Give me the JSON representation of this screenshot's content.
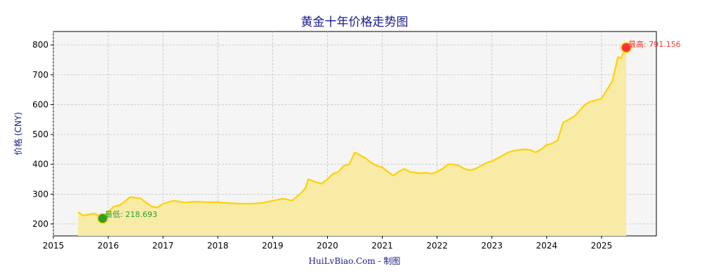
{
  "chart_data": {
    "type": "area",
    "title": "黄金十年价格走势图",
    "xlabel": "",
    "ylabel": "价格 (CNY)",
    "credit": "HuiLvBiao.Com - 制图",
    "xlim": [
      2015.0,
      2026.0
    ],
    "ylim": [
      160,
      845
    ],
    "x_ticks": [
      2015,
      2016,
      2017,
      2018,
      2019,
      2020,
      2021,
      2022,
      2023,
      2024,
      2025
    ],
    "y_ticks": [
      200,
      300,
      400,
      500,
      600,
      700,
      800
    ],
    "grid": true,
    "line_color": "#ffd200",
    "fill_color": "#f7eba6",
    "max_color": "#ff3333",
    "min_color": "#2e9e2e",
    "max_point": {
      "x": 2025.45,
      "y": 791.156,
      "label": "最高: 791.156"
    },
    "min_point": {
      "x": 2015.9,
      "y": 218.693,
      "label": "最低: 218.693"
    },
    "series": [
      {
        "x": [
          2015.45,
          2015.55,
          2015.65,
          2015.75,
          2015.85,
          2015.9,
          2016.0,
          2016.1,
          2016.2,
          2016.3,
          2016.4,
          2016.5,
          2016.6,
          2016.7,
          2016.8,
          2016.9,
          2017.0,
          2017.2,
          2017.4,
          2017.6,
          2017.8,
          2018.0,
          2018.2,
          2018.4,
          2018.6,
          2018.8,
          2019.0,
          2019.2,
          2019.35,
          2019.5,
          2019.6,
          2019.65,
          2019.8,
          2019.9,
          2020.0,
          2020.1,
          2020.2,
          2020.3,
          2020.4,
          2020.5,
          2020.6,
          2020.7,
          2020.8,
          2020.9,
          2021.0,
          2021.1,
          2021.2,
          2021.3,
          2021.4,
          2021.5,
          2021.6,
          2021.7,
          2021.8,
          2021.9,
          2022.0,
          2022.1,
          2022.2,
          2022.3,
          2022.4,
          2022.5,
          2022.6,
          2022.7,
          2022.8,
          2022.9,
          2023.0,
          2023.1,
          2023.2,
          2023.3,
          2023.4,
          2023.5,
          2023.6,
          2023.7,
          2023.8,
          2023.9,
          2024.0,
          2024.1,
          2024.2,
          2024.3,
          2024.4,
          2024.5,
          2024.6,
          2024.7,
          2024.8,
          2024.9,
          2025.0,
          2025.1,
          2025.2,
          2025.3,
          2025.35,
          2025.45
        ],
        "y": [
          240,
          228,
          232,
          235,
          225,
          218.693,
          240,
          258,
          262,
          275,
          290,
          288,
          285,
          270,
          258,
          255,
          268,
          278,
          272,
          275,
          273,
          273,
          270,
          268,
          268,
          270,
          278,
          285,
          278,
          300,
          320,
          350,
          340,
          335,
          350,
          368,
          375,
          395,
          400,
          440,
          430,
          420,
          405,
          395,
          390,
          375,
          362,
          375,
          385,
          375,
          372,
          370,
          372,
          368,
          375,
          385,
          400,
          400,
          395,
          385,
          380,
          385,
          395,
          405,
          410,
          420,
          430,
          440,
          445,
          448,
          450,
          448,
          440,
          450,
          465,
          470,
          480,
          540,
          550,
          560,
          580,
          600,
          610,
          615,
          620,
          650,
          680,
          760,
          755,
          791.156
        ]
      }
    ]
  }
}
